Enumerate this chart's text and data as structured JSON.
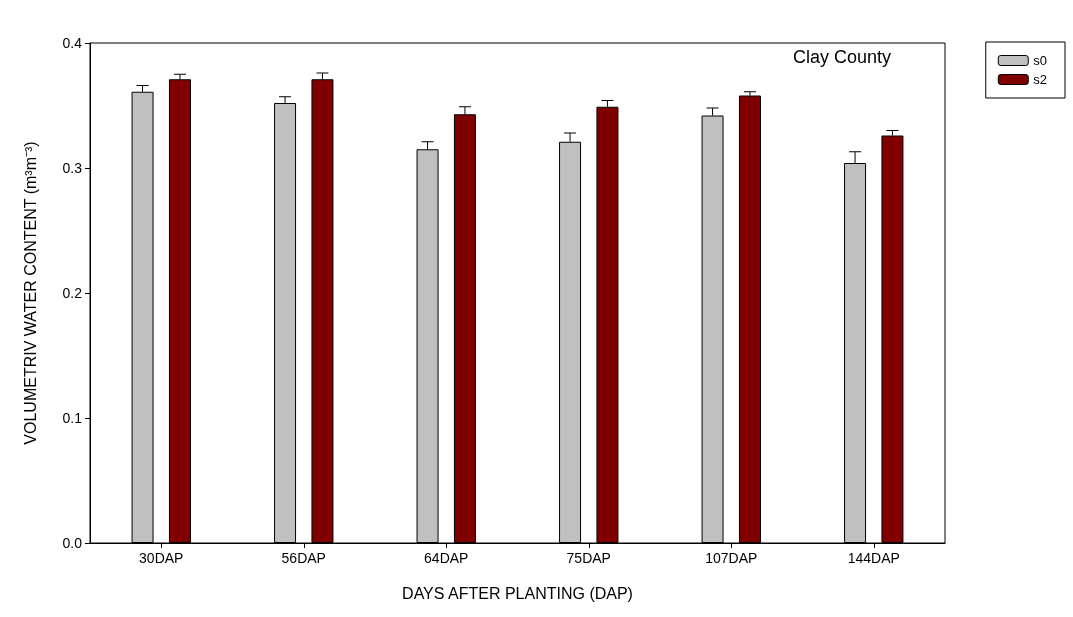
{
  "chart_data": {
    "type": "bar",
    "xlabel": "DAYS AFTER PLANTING (DAP)",
    "ylabel": "VOLUMETRIV WATER CONTENT (m³m⁻³)",
    "annotations": [
      "Clay County"
    ],
    "categories": [
      "30DAP",
      "56DAP",
      "64DAP",
      "75DAP",
      "107DAP",
      "144DAP"
    ],
    "series": [
      {
        "name": "s0",
        "color": "#c0c0c0",
        "values": [
          0.361,
          0.352,
          0.315,
          0.321,
          0.342,
          0.304
        ],
        "errors": [
          [
            0.361,
            0.366
          ],
          [
            0.352,
            0.357
          ],
          [
            0.315,
            0.321
          ],
          [
            0.321,
            0.328
          ],
          [
            0.342,
            0.348
          ],
          [
            0.304,
            0.313
          ]
        ]
      },
      {
        "name": "s2",
        "color": "#800000",
        "values": [
          0.371,
          0.371,
          0.343,
          0.349,
          0.358,
          0.326
        ],
        "errors": [
          [
            0.371,
            0.375
          ],
          [
            0.371,
            0.376
          ],
          [
            0.343,
            0.349
          ],
          [
            0.349,
            0.354
          ],
          [
            0.358,
            0.361
          ],
          [
            0.326,
            0.33
          ]
        ]
      }
    ],
    "ylim": [
      0,
      0.4
    ],
    "yticks": [
      {
        "value": 0,
        "label": "0.0"
      },
      0.1,
      0.2,
      0.3,
      0.4
    ],
    "grid": false,
    "legend": "top right"
  }
}
